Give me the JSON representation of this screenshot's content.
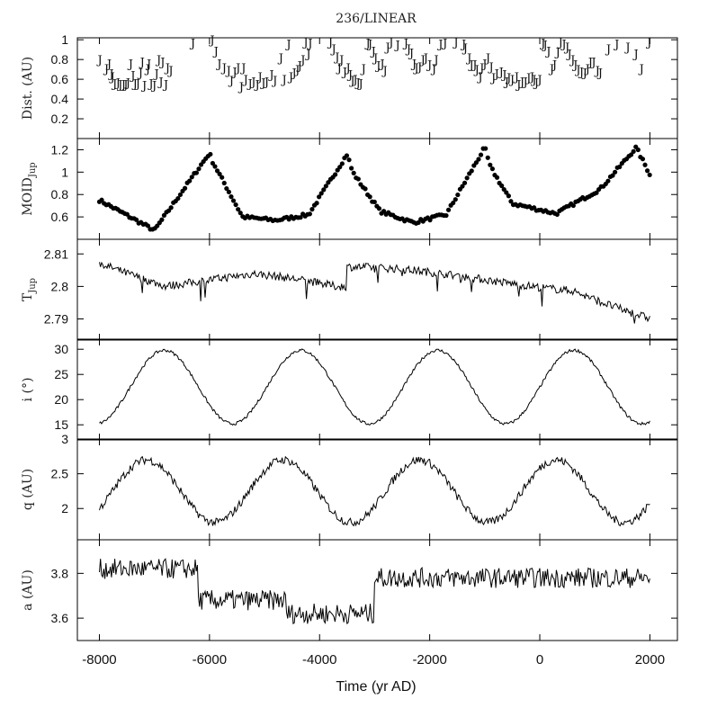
{
  "chart_data": {
    "type": "line",
    "title": "236/LINEAR",
    "xlabel": "Time (yr AD)",
    "xlim": [
      -8400,
      2500
    ],
    "xticks": [
      -8000,
      -6000,
      -4000,
      -2000,
      0,
      2000
    ],
    "xtick_labels": [
      "-8000",
      "-6000",
      "-4000",
      "-2000",
      "0",
      "2000"
    ],
    "panels": [
      {
        "id": "dist",
        "type": "scatter",
        "ylabel": "Dist. (AU)",
        "marker": "J",
        "ylim": [
          0,
          1.02
        ],
        "yticks": [
          0.2,
          0.4,
          0.6,
          0.8,
          1
        ],
        "ytick_labels": [
          "0.2",
          "0.4",
          "0.6",
          "0.8",
          "1"
        ],
        "points": [
          [
            -7990,
            0.8
          ],
          [
            -7870,
            0.71
          ],
          [
            -7820,
            0.76
          ],
          [
            -7780,
            0.66
          ],
          [
            -7760,
            0.63
          ],
          [
            -7720,
            0.56
          ],
          [
            -7660,
            0.57
          ],
          [
            -7620,
            0.55
          ],
          [
            -7560,
            0.55
          ],
          [
            -7520,
            0.55
          ],
          [
            -7480,
            0.57
          ],
          [
            -7430,
            0.76
          ],
          [
            -7390,
            0.64
          ],
          [
            -7350,
            0.56
          ],
          [
            -7300,
            0.56
          ],
          [
            -7250,
            0.67
          ],
          [
            -7220,
            0.78
          ],
          [
            -7180,
            0.54
          ],
          [
            -7120,
            0.71
          ],
          [
            -7100,
            0.76
          ],
          [
            -7060,
            0.56
          ],
          [
            -7000,
            0.54
          ],
          [
            -6960,
            0.66
          ],
          [
            -6920,
            0.8
          ],
          [
            -6880,
            0.58
          ],
          [
            -6850,
            0.78
          ],
          [
            -6790,
            0.55
          ],
          [
            -6760,
            0.72
          ],
          [
            -6700,
            0.69
          ],
          [
            -6300,
            0.97
          ],
          [
            -5950,
            1.0
          ],
          [
            -5880,
            0.89
          ],
          [
            -5820,
            0.76
          ],
          [
            -5730,
            0.72
          ],
          [
            -5650,
            0.69
          ],
          [
            -5600,
            0.59
          ],
          [
            -5540,
            0.68
          ],
          [
            -5480,
            0.72
          ],
          [
            -5420,
            0.53
          ],
          [
            -5380,
            0.72
          ],
          [
            -5340,
            0.6
          ],
          [
            -5260,
            0.56
          ],
          [
            -5200,
            0.58
          ],
          [
            -5130,
            0.55
          ],
          [
            -5080,
            0.63
          ],
          [
            -5020,
            0.57
          ],
          [
            -4960,
            0.58
          ],
          [
            -4870,
            0.65
          ],
          [
            -4810,
            0.59
          ],
          [
            -4700,
            0.82
          ],
          [
            -4640,
            0.6
          ],
          [
            -4560,
            0.96
          ],
          [
            -4520,
            0.63
          ],
          [
            -4460,
            0.67
          ],
          [
            -4400,
            0.7
          ],
          [
            -4360,
            0.74
          ],
          [
            -4300,
            0.8
          ],
          [
            -4250,
            0.98
          ],
          [
            -4200,
            0.86
          ],
          [
            -4170,
            0.97
          ],
          [
            -3800,
            0.98
          ],
          [
            -3740,
            0.91
          ],
          [
            -3680,
            0.83
          ],
          [
            -3640,
            0.72
          ],
          [
            -3600,
            0.8
          ],
          [
            -3540,
            0.68
          ],
          [
            -3480,
            0.72
          ],
          [
            -3440,
            0.65
          ],
          [
            -3400,
            0.59
          ],
          [
            -3350,
            0.6
          ],
          [
            -3300,
            0.57
          ],
          [
            -3250,
            0.56
          ],
          [
            -3200,
            0.71
          ],
          [
            -3120,
            0.97
          ],
          [
            -3080,
            0.96
          ],
          [
            -3020,
            0.89
          ],
          [
            -2980,
            0.82
          ],
          [
            -2930,
            0.74
          ],
          [
            -2860,
            0.76
          ],
          [
            -2810,
            0.69
          ],
          [
            -2760,
            0.93
          ],
          [
            -2700,
            0.98
          ],
          [
            -2580,
            0.95
          ],
          [
            -2430,
            0.97
          ],
          [
            -2380,
            0.91
          ],
          [
            -2330,
            0.87
          ],
          [
            -2280,
            0.76
          ],
          [
            -2240,
            0.72
          ],
          [
            -2180,
            0.73
          ],
          [
            -2120,
            0.8
          ],
          [
            -2070,
            0.82
          ],
          [
            -2000,
            0.75
          ],
          [
            -1920,
            0.71
          ],
          [
            -1880,
            0.8
          ],
          [
            -1800,
            0.96
          ],
          [
            -1720,
            0.97
          ],
          [
            -1520,
            0.98
          ],
          [
            -1380,
            0.96
          ],
          [
            -1350,
            0.92
          ],
          [
            -1280,
            0.82
          ],
          [
            -1240,
            0.75
          ],
          [
            -1180,
            0.75
          ],
          [
            -1140,
            0.7
          ],
          [
            -1080,
            0.63
          ],
          [
            -1050,
            0.72
          ],
          [
            -1000,
            0.76
          ],
          [
            -940,
            0.82
          ],
          [
            -880,
            0.73
          ],
          [
            -840,
            0.62
          ],
          [
            -780,
            0.66
          ],
          [
            -700,
            0.68
          ],
          [
            -640,
            0.65
          ],
          [
            -600,
            0.58
          ],
          [
            -560,
            0.62
          ],
          [
            -500,
            0.6
          ],
          [
            -420,
            0.63
          ],
          [
            -380,
            0.55
          ],
          [
            -320,
            0.58
          ],
          [
            -260,
            0.58
          ],
          [
            -200,
            0.62
          ],
          [
            -140,
            0.63
          ],
          [
            -100,
            0.6
          ],
          [
            -60,
            0.57
          ],
          [
            0,
            0.6
          ],
          [
            60,
            0.97
          ],
          [
            100,
            0.95
          ],
          [
            160,
            0.89
          ],
          [
            220,
            0.71
          ],
          [
            270,
            0.75
          ],
          [
            330,
            0.88
          ],
          [
            380,
            0.98
          ],
          [
            440,
            0.96
          ],
          [
            500,
            0.93
          ],
          [
            540,
            0.86
          ],
          [
            600,
            0.8
          ],
          [
            650,
            0.75
          ],
          [
            700,
            0.7
          ],
          [
            760,
            0.68
          ],
          [
            820,
            0.67
          ],
          [
            870,
            0.71
          ],
          [
            920,
            0.78
          ],
          [
            980,
            0.78
          ],
          [
            1050,
            0.69
          ],
          [
            1100,
            0.67
          ],
          [
            1250,
            0.91
          ],
          [
            1400,
            0.96
          ],
          [
            1600,
            0.93
          ],
          [
            1750,
            0.86
          ],
          [
            1850,
            0.71
          ],
          [
            1990,
            0.98
          ]
        ]
      },
      {
        "id": "moid",
        "type": "scatter",
        "ylabel": "MOID",
        "ylabel_sub": "Jup",
        "ylim": [
          0.4,
          1.3
        ],
        "yticks": [
          0.6,
          0.8,
          1,
          1.2
        ],
        "ytick_labels": [
          "0.6",
          "0.8",
          "1",
          "1.2"
        ],
        "series_func": "moid"
      },
      {
        "id": "tjup",
        "type": "line",
        "ylabel": "T",
        "ylabel_sub": "Jup",
        "ylim": [
          2.7835,
          2.8145
        ],
        "yticks": [
          2.79,
          2.8,
          2.81
        ],
        "ytick_labels": [
          "2.79",
          "2.8",
          "2.81"
        ],
        "series_func": "tjup"
      },
      {
        "id": "inc",
        "type": "line",
        "ylabel": "i (°)",
        "ylim": [
          12,
          32
        ],
        "yticks": [
          15,
          20,
          25,
          30
        ],
        "ytick_labels": [
          "15",
          "20",
          "25",
          "30"
        ],
        "series_func": "inc"
      },
      {
        "id": "q",
        "type": "line",
        "ylabel": "q (AU)",
        "ylim": [
          1.55,
          3.0
        ],
        "yticks": [
          2,
          2.5,
          3
        ],
        "ytick_labels": [
          "2",
          "2.5",
          "3"
        ],
        "series_func": "q"
      },
      {
        "id": "a",
        "type": "line",
        "ylabel": "a (AU)",
        "ylim": [
          3.5,
          3.95
        ],
        "yticks": [
          3.6,
          3.8
        ],
        "ytick_labels": [
          "3.6",
          "3.8"
        ],
        "series_func": "a"
      }
    ]
  }
}
